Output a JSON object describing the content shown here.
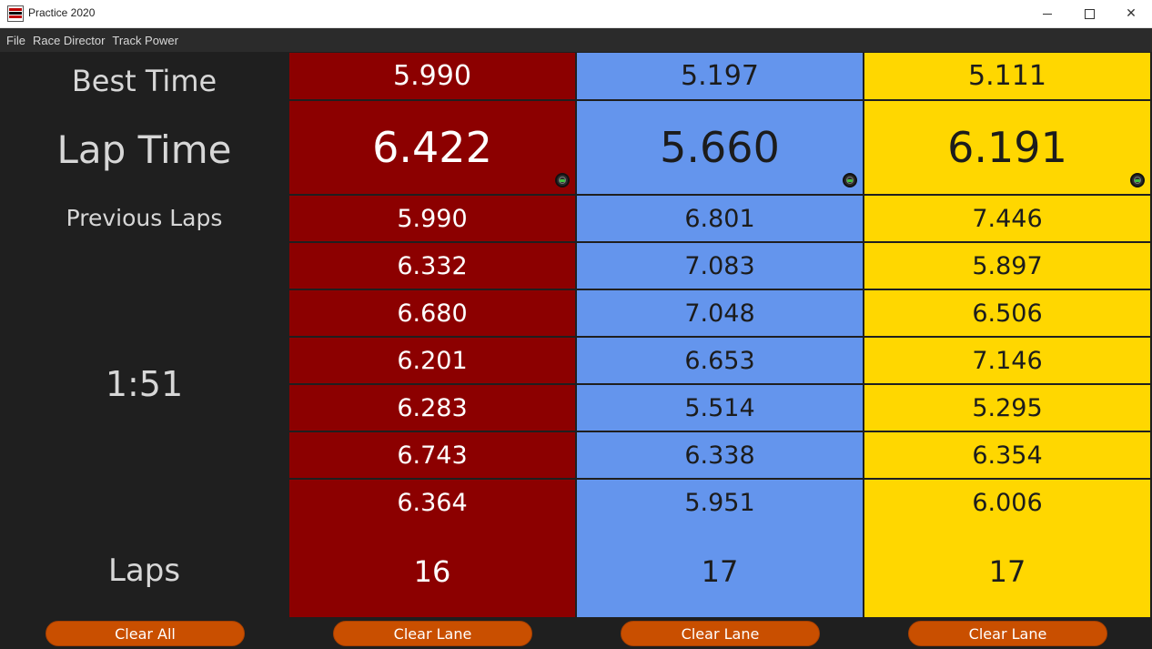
{
  "window": {
    "title": "Practice 2020"
  },
  "menu": {
    "items": [
      "File",
      "Race Director",
      "Track Power"
    ]
  },
  "labels": {
    "best_time": "Best Time",
    "lap_time": "Lap Time",
    "previous_laps": "Previous Laps",
    "timer": "1:51",
    "laps": "Laps"
  },
  "colors": {
    "lane1": "#8c0000",
    "lane2": "#6495ed",
    "lane3": "#ffd700",
    "button": "#c94f00",
    "background": "#1f1f1f"
  },
  "lanes": [
    {
      "best_time": "5.990",
      "lap_time": "6.422",
      "previous_laps": [
        "5.990",
        "6.332",
        "6.680",
        "6.201",
        "6.283",
        "6.743",
        "6.364"
      ],
      "laps": "16",
      "icon": "signal-icon",
      "button": "Clear Lane"
    },
    {
      "best_time": "5.197",
      "lap_time": "5.660",
      "previous_laps": [
        "6.801",
        "7.083",
        "7.048",
        "6.653",
        "5.514",
        "6.338",
        "5.951"
      ],
      "laps": "17",
      "icon": "signal-icon",
      "button": "Clear Lane"
    },
    {
      "best_time": "5.111",
      "lap_time": "6.191",
      "previous_laps": [
        "7.446",
        "5.897",
        "6.506",
        "7.146",
        "5.295",
        "6.354",
        "6.006"
      ],
      "laps": "17",
      "icon": "signal-icon",
      "button": "Clear Lane"
    }
  ],
  "clear_all": "Clear All"
}
